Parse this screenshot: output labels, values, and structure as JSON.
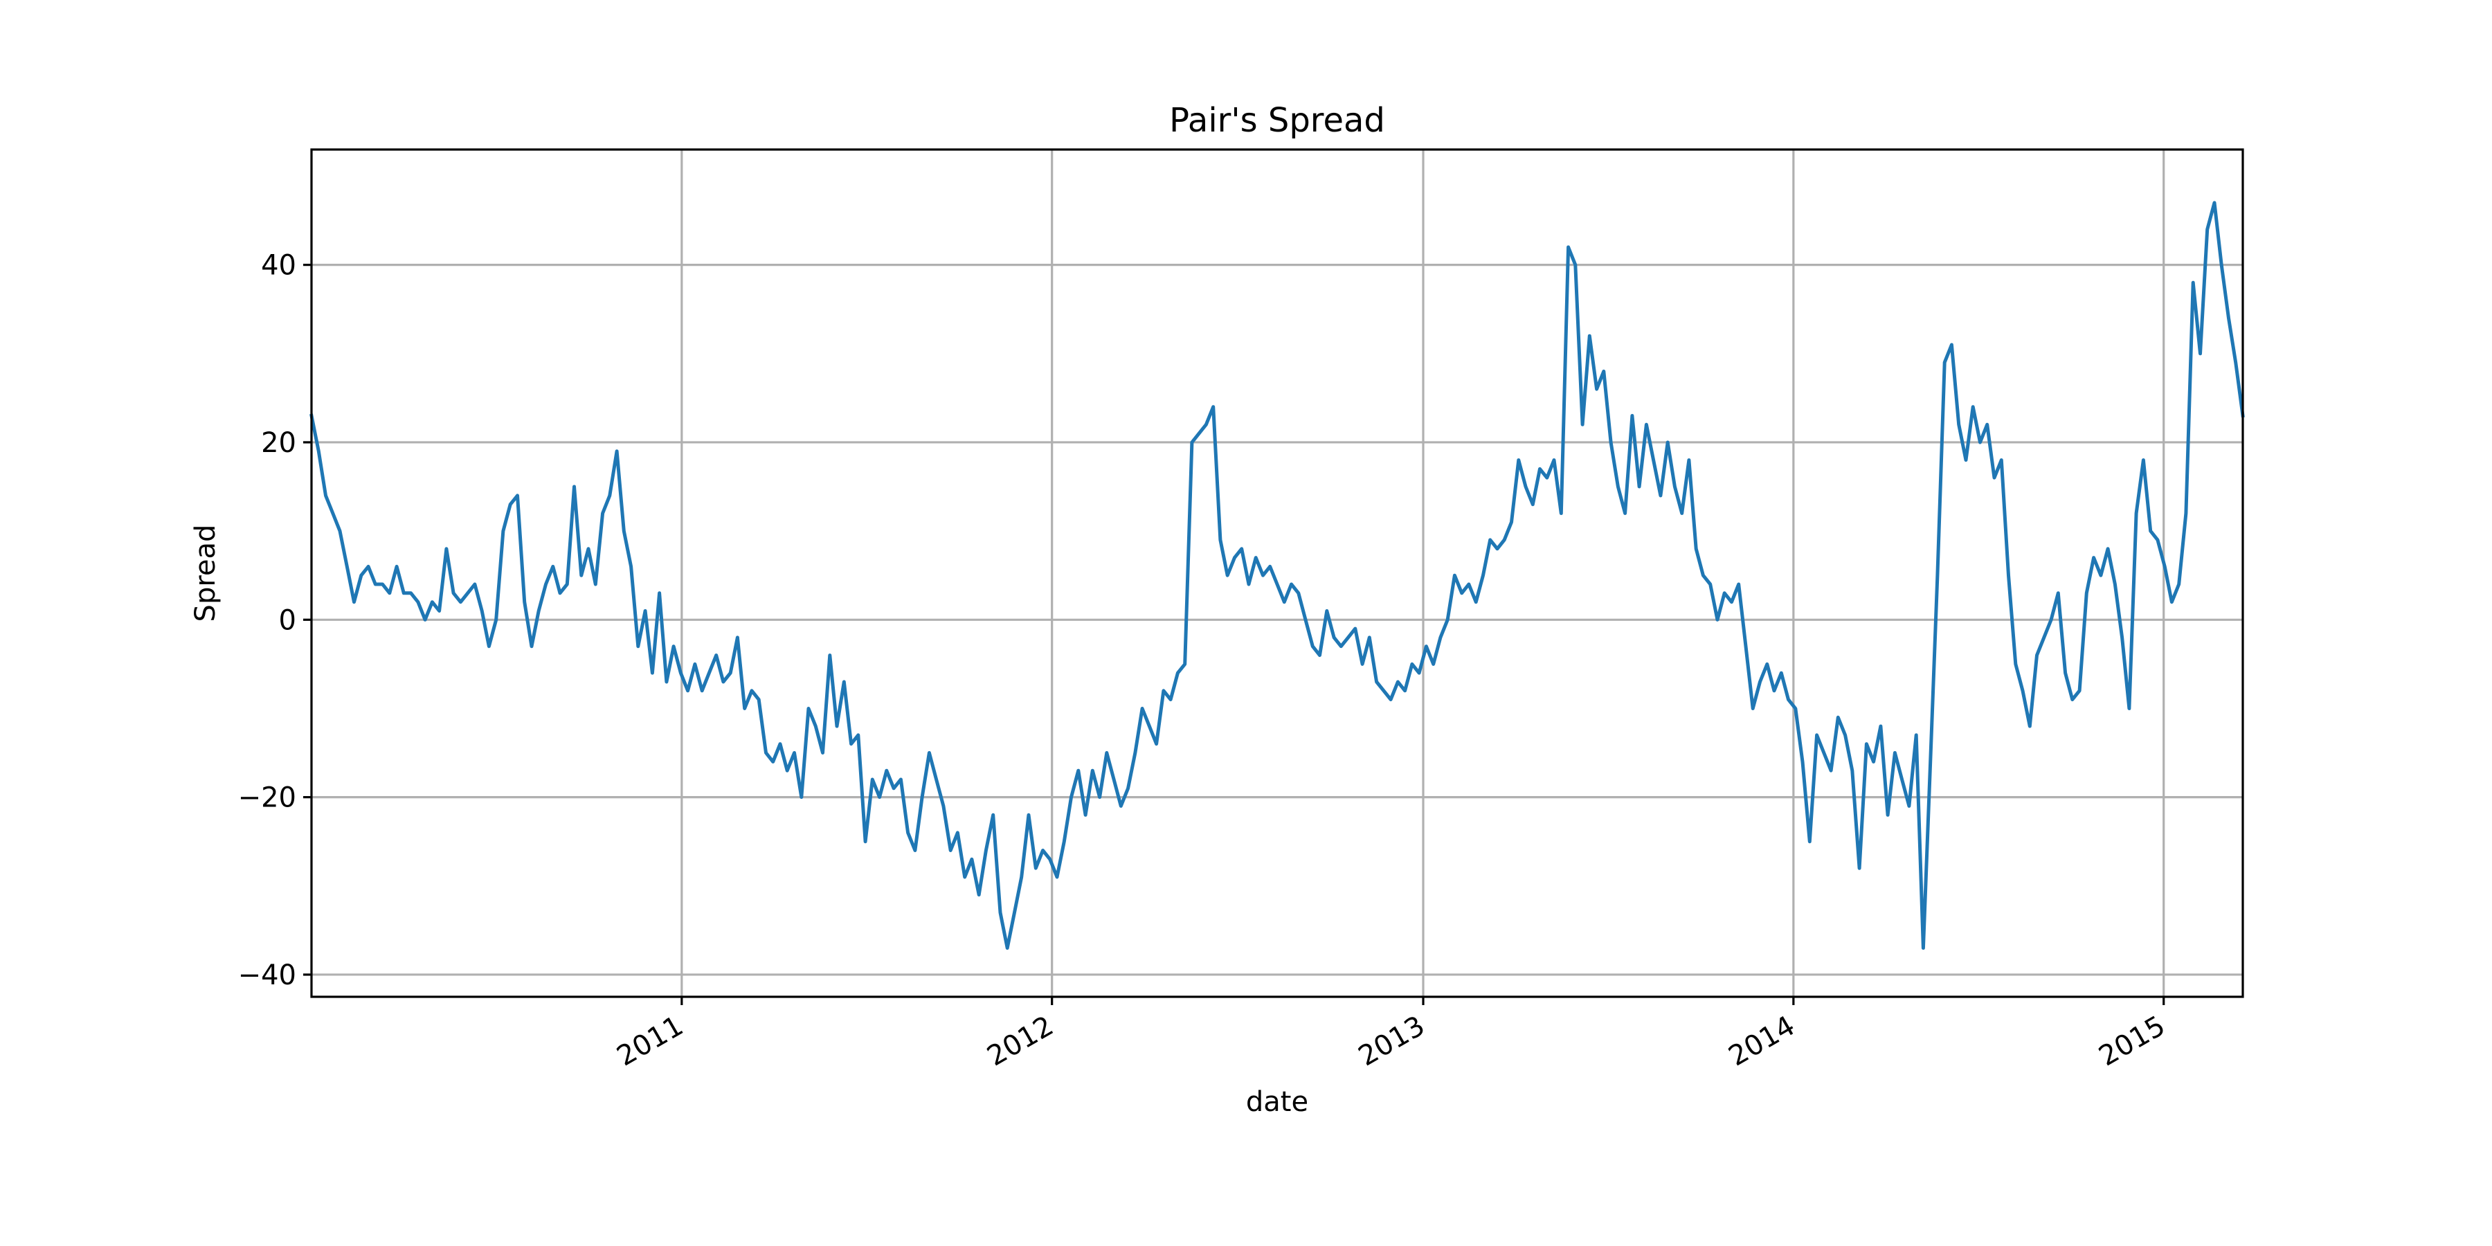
{
  "chart_data": {
    "type": "line",
    "title": "Pair's Spread",
    "xlabel": "date",
    "ylabel": "Spread",
    "xlim": [
      "2010-01-01",
      "2015-03-20"
    ],
    "ylim": [
      -42.5,
      53
    ],
    "grid": true,
    "legend": "none",
    "x_ticks": [
      {
        "date": "2011-01-01",
        "label": "2011"
      },
      {
        "date": "2012-01-01",
        "label": "2012"
      },
      {
        "date": "2013-01-01",
        "label": "2013"
      },
      {
        "date": "2014-01-01",
        "label": "2014"
      },
      {
        "date": "2015-01-01",
        "label": "2015"
      }
    ],
    "y_ticks": [
      {
        "value": -40,
        "label": "−40"
      },
      {
        "value": -20,
        "label": "−20"
      },
      {
        "value": 0,
        "label": "0"
      },
      {
        "value": 20,
        "label": "20"
      },
      {
        "value": 40,
        "label": "40"
      }
    ],
    "series": [
      {
        "color": "#1f77b4",
        "points": [
          [
            "2010-01-01",
            23
          ],
          [
            "2010-01-08",
            19
          ],
          [
            "2010-01-15",
            14
          ],
          [
            "2010-01-22",
            12
          ],
          [
            "2010-01-29",
            10
          ],
          [
            "2010-02-05",
            6
          ],
          [
            "2010-02-12",
            2
          ],
          [
            "2010-02-19",
            5
          ],
          [
            "2010-02-26",
            6
          ],
          [
            "2010-03-05",
            4
          ],
          [
            "2010-03-12",
            4
          ],
          [
            "2010-03-19",
            3
          ],
          [
            "2010-03-26",
            6
          ],
          [
            "2010-04-02",
            3
          ],
          [
            "2010-04-09",
            3
          ],
          [
            "2010-04-16",
            2
          ],
          [
            "2010-04-23",
            0
          ],
          [
            "2010-04-30",
            2
          ],
          [
            "2010-05-07",
            1
          ],
          [
            "2010-05-14",
            8
          ],
          [
            "2010-05-21",
            3
          ],
          [
            "2010-05-28",
            2
          ],
          [
            "2010-06-04",
            3
          ],
          [
            "2010-06-11",
            4
          ],
          [
            "2010-06-18",
            1
          ],
          [
            "2010-06-25",
            -3
          ],
          [
            "2010-07-02",
            0
          ],
          [
            "2010-07-09",
            10
          ],
          [
            "2010-07-16",
            13
          ],
          [
            "2010-07-23",
            14
          ],
          [
            "2010-07-30",
            2
          ],
          [
            "2010-08-06",
            -3
          ],
          [
            "2010-08-13",
            1
          ],
          [
            "2010-08-20",
            4
          ],
          [
            "2010-08-27",
            6
          ],
          [
            "2010-09-03",
            3
          ],
          [
            "2010-09-10",
            4
          ],
          [
            "2010-09-17",
            15
          ],
          [
            "2010-09-24",
            5
          ],
          [
            "2010-10-01",
            8
          ],
          [
            "2010-10-08",
            4
          ],
          [
            "2010-10-15",
            12
          ],
          [
            "2010-10-22",
            14
          ],
          [
            "2010-10-29",
            19
          ],
          [
            "2010-11-05",
            10
          ],
          [
            "2010-11-12",
            6
          ],
          [
            "2010-11-19",
            -3
          ],
          [
            "2010-11-26",
            1
          ],
          [
            "2010-12-03",
            -6
          ],
          [
            "2010-12-10",
            3
          ],
          [
            "2010-12-17",
            -7
          ],
          [
            "2010-12-24",
            -3
          ],
          [
            "2010-12-31",
            -6
          ],
          [
            "2011-01-07",
            -8
          ],
          [
            "2011-01-14",
            -5
          ],
          [
            "2011-01-21",
            -8
          ],
          [
            "2011-01-28",
            -6
          ],
          [
            "2011-02-04",
            -4
          ],
          [
            "2011-02-11",
            -7
          ],
          [
            "2011-02-18",
            -6
          ],
          [
            "2011-02-25",
            -2
          ],
          [
            "2011-03-04",
            -10
          ],
          [
            "2011-03-11",
            -8
          ],
          [
            "2011-03-18",
            -9
          ],
          [
            "2011-03-25",
            -15
          ],
          [
            "2011-04-01",
            -16
          ],
          [
            "2011-04-08",
            -14
          ],
          [
            "2011-04-15",
            -17
          ],
          [
            "2011-04-22",
            -15
          ],
          [
            "2011-04-29",
            -20
          ],
          [
            "2011-05-06",
            -10
          ],
          [
            "2011-05-13",
            -12
          ],
          [
            "2011-05-20",
            -15
          ],
          [
            "2011-05-27",
            -4
          ],
          [
            "2011-06-03",
            -12
          ],
          [
            "2011-06-10",
            -7
          ],
          [
            "2011-06-17",
            -14
          ],
          [
            "2011-06-24",
            -13
          ],
          [
            "2011-07-01",
            -25
          ],
          [
            "2011-07-08",
            -18
          ],
          [
            "2011-07-15",
            -20
          ],
          [
            "2011-07-22",
            -17
          ],
          [
            "2011-07-29",
            -19
          ],
          [
            "2011-08-05",
            -18
          ],
          [
            "2011-08-12",
            -24
          ],
          [
            "2011-08-19",
            -26
          ],
          [
            "2011-08-26",
            -20
          ],
          [
            "2011-09-02",
            -15
          ],
          [
            "2011-09-09",
            -18
          ],
          [
            "2011-09-16",
            -21
          ],
          [
            "2011-09-23",
            -26
          ],
          [
            "2011-09-30",
            -24
          ],
          [
            "2011-10-07",
            -29
          ],
          [
            "2011-10-14",
            -27
          ],
          [
            "2011-10-21",
            -31
          ],
          [
            "2011-10-28",
            -26
          ],
          [
            "2011-11-04",
            -22
          ],
          [
            "2011-11-11",
            -33
          ],
          [
            "2011-11-18",
            -37
          ],
          [
            "2011-11-25",
            -33
          ],
          [
            "2011-12-02",
            -29
          ],
          [
            "2011-12-09",
            -22
          ],
          [
            "2011-12-16",
            -28
          ],
          [
            "2011-12-23",
            -26
          ],
          [
            "2011-12-30",
            -27
          ],
          [
            "2012-01-06",
            -29
          ],
          [
            "2012-01-13",
            -25
          ],
          [
            "2012-01-20",
            -20
          ],
          [
            "2012-01-27",
            -17
          ],
          [
            "2012-02-03",
            -22
          ],
          [
            "2012-02-10",
            -17
          ],
          [
            "2012-02-17",
            -20
          ],
          [
            "2012-02-24",
            -15
          ],
          [
            "2012-03-02",
            -18
          ],
          [
            "2012-03-09",
            -21
          ],
          [
            "2012-03-16",
            -19
          ],
          [
            "2012-03-23",
            -15
          ],
          [
            "2012-03-30",
            -10
          ],
          [
            "2012-04-06",
            -12
          ],
          [
            "2012-04-13",
            -14
          ],
          [
            "2012-04-20",
            -8
          ],
          [
            "2012-04-27",
            -9
          ],
          [
            "2012-05-04",
            -6
          ],
          [
            "2012-05-11",
            -5
          ],
          [
            "2012-05-18",
            20
          ],
          [
            "2012-05-25",
            21
          ],
          [
            "2012-06-01",
            22
          ],
          [
            "2012-06-08",
            24
          ],
          [
            "2012-06-15",
            9
          ],
          [
            "2012-06-22",
            5
          ],
          [
            "2012-06-29",
            7
          ],
          [
            "2012-07-06",
            8
          ],
          [
            "2012-07-13",
            4
          ],
          [
            "2012-07-20",
            7
          ],
          [
            "2012-07-27",
            5
          ],
          [
            "2012-08-03",
            6
          ],
          [
            "2012-08-10",
            4
          ],
          [
            "2012-08-17",
            2
          ],
          [
            "2012-08-24",
            4
          ],
          [
            "2012-08-31",
            3
          ],
          [
            "2012-09-07",
            0
          ],
          [
            "2012-09-14",
            -3
          ],
          [
            "2012-09-21",
            -4
          ],
          [
            "2012-09-28",
            1
          ],
          [
            "2012-10-05",
            -2
          ],
          [
            "2012-10-12",
            -3
          ],
          [
            "2012-10-19",
            -2
          ],
          [
            "2012-10-26",
            -1
          ],
          [
            "2012-11-02",
            -5
          ],
          [
            "2012-11-09",
            -2
          ],
          [
            "2012-11-16",
            -7
          ],
          [
            "2012-11-23",
            -8
          ],
          [
            "2012-11-30",
            -9
          ],
          [
            "2012-12-07",
            -7
          ],
          [
            "2012-12-14",
            -8
          ],
          [
            "2012-12-21",
            -5
          ],
          [
            "2012-12-28",
            -6
          ],
          [
            "2013-01-04",
            -3
          ],
          [
            "2013-01-11",
            -5
          ],
          [
            "2013-01-18",
            -2
          ],
          [
            "2013-01-25",
            0
          ],
          [
            "2013-02-01",
            5
          ],
          [
            "2013-02-08",
            3
          ],
          [
            "2013-02-15",
            4
          ],
          [
            "2013-02-22",
            2
          ],
          [
            "2013-03-01",
            5
          ],
          [
            "2013-03-08",
            9
          ],
          [
            "2013-03-15",
            8
          ],
          [
            "2013-03-22",
            9
          ],
          [
            "2013-03-29",
            11
          ],
          [
            "2013-04-05",
            18
          ],
          [
            "2013-04-12",
            15
          ],
          [
            "2013-04-19",
            13
          ],
          [
            "2013-04-26",
            17
          ],
          [
            "2013-05-03",
            16
          ],
          [
            "2013-05-10",
            18
          ],
          [
            "2013-05-17",
            12
          ],
          [
            "2013-05-24",
            42
          ],
          [
            "2013-05-31",
            40
          ],
          [
            "2013-06-07",
            22
          ],
          [
            "2013-06-14",
            32
          ],
          [
            "2013-06-21",
            26
          ],
          [
            "2013-06-28",
            28
          ],
          [
            "2013-07-05",
            20
          ],
          [
            "2013-07-12",
            15
          ],
          [
            "2013-07-19",
            12
          ],
          [
            "2013-07-26",
            23
          ],
          [
            "2013-08-02",
            15
          ],
          [
            "2013-08-09",
            22
          ],
          [
            "2013-08-16",
            18
          ],
          [
            "2013-08-23",
            14
          ],
          [
            "2013-08-30",
            20
          ],
          [
            "2013-09-06",
            15
          ],
          [
            "2013-09-13",
            12
          ],
          [
            "2013-09-20",
            18
          ],
          [
            "2013-09-27",
            8
          ],
          [
            "2013-10-04",
            5
          ],
          [
            "2013-10-11",
            4
          ],
          [
            "2013-10-18",
            0
          ],
          [
            "2013-10-25",
            3
          ],
          [
            "2013-11-01",
            2
          ],
          [
            "2013-11-08",
            4
          ],
          [
            "2013-11-15",
            -3
          ],
          [
            "2013-11-22",
            -10
          ],
          [
            "2013-11-29",
            -7
          ],
          [
            "2013-12-06",
            -5
          ],
          [
            "2013-12-13",
            -8
          ],
          [
            "2013-12-20",
            -6
          ],
          [
            "2013-12-27",
            -9
          ],
          [
            "2014-01-03",
            -10
          ],
          [
            "2014-01-10",
            -16
          ],
          [
            "2014-01-17",
            -25
          ],
          [
            "2014-01-24",
            -13
          ],
          [
            "2014-01-31",
            -15
          ],
          [
            "2014-02-07",
            -17
          ],
          [
            "2014-02-14",
            -11
          ],
          [
            "2014-02-21",
            -13
          ],
          [
            "2014-02-28",
            -17
          ],
          [
            "2014-03-07",
            -28
          ],
          [
            "2014-03-14",
            -14
          ],
          [
            "2014-03-21",
            -16
          ],
          [
            "2014-03-28",
            -12
          ],
          [
            "2014-04-04",
            -22
          ],
          [
            "2014-04-11",
            -15
          ],
          [
            "2014-04-18",
            -18
          ],
          [
            "2014-04-25",
            -21
          ],
          [
            "2014-05-02",
            -13
          ],
          [
            "2014-05-09",
            -37
          ],
          [
            "2014-05-16",
            -16
          ],
          [
            "2014-05-23",
            5
          ],
          [
            "2014-05-30",
            29
          ],
          [
            "2014-06-06",
            31
          ],
          [
            "2014-06-13",
            22
          ],
          [
            "2014-06-20",
            18
          ],
          [
            "2014-06-27",
            24
          ],
          [
            "2014-07-04",
            20
          ],
          [
            "2014-07-11",
            22
          ],
          [
            "2014-07-18",
            16
          ],
          [
            "2014-07-25",
            18
          ],
          [
            "2014-08-01",
            5
          ],
          [
            "2014-08-08",
            -5
          ],
          [
            "2014-08-15",
            -8
          ],
          [
            "2014-08-22",
            -12
          ],
          [
            "2014-08-29",
            -4
          ],
          [
            "2014-09-05",
            -2
          ],
          [
            "2014-09-12",
            0
          ],
          [
            "2014-09-19",
            3
          ],
          [
            "2014-09-26",
            -6
          ],
          [
            "2014-10-03",
            -9
          ],
          [
            "2014-10-10",
            -8
          ],
          [
            "2014-10-17",
            3
          ],
          [
            "2014-10-24",
            7
          ],
          [
            "2014-10-31",
            5
          ],
          [
            "2014-11-07",
            8
          ],
          [
            "2014-11-14",
            4
          ],
          [
            "2014-11-21",
            -2
          ],
          [
            "2014-11-28",
            -10
          ],
          [
            "2014-12-05",
            12
          ],
          [
            "2014-12-12",
            18
          ],
          [
            "2014-12-19",
            10
          ],
          [
            "2014-12-26",
            9
          ],
          [
            "2015-01-02",
            6
          ],
          [
            "2015-01-09",
            2
          ],
          [
            "2015-01-16",
            4
          ],
          [
            "2015-01-23",
            12
          ],
          [
            "2015-01-30",
            38
          ],
          [
            "2015-02-06",
            30
          ],
          [
            "2015-02-13",
            44
          ],
          [
            "2015-02-20",
            47
          ],
          [
            "2015-02-27",
            40
          ],
          [
            "2015-03-06",
            34
          ],
          [
            "2015-03-13",
            29
          ],
          [
            "2015-03-20",
            23
          ]
        ]
      }
    ]
  }
}
